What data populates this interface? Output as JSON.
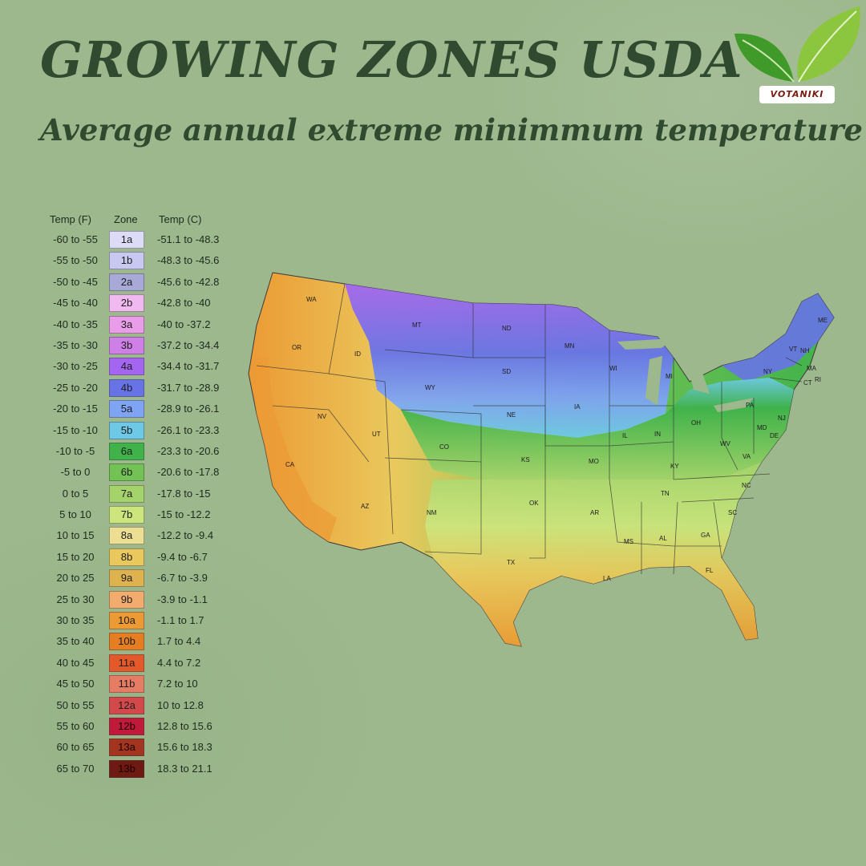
{
  "title": "GROWING ZONES USDA",
  "subtitle": "Average annual extreme minimmum temperature",
  "logo": {
    "text": "VOTANIKI",
    "icon": "leaf-icon"
  },
  "legend": {
    "headers": {
      "temp_f": "Temp (F)",
      "zone": "Zone",
      "temp_c": "Temp (C)"
    },
    "rows": [
      {
        "f": "-60 to -55",
        "zone": "1a",
        "c": "-51.1 to -48.3",
        "color": "#dcdcf6",
        "text_color": "#1d1d1d"
      },
      {
        "f": "-55 to -50",
        "zone": "1b",
        "c": "-48.3 to -45.6",
        "color": "#c8c8f0",
        "text_color": "#1d1d1d"
      },
      {
        "f": "-50 to -45",
        "zone": "2a",
        "c": "-45.6 to -42.8",
        "color": "#a9a9d8",
        "text_color": "#1d1d1d"
      },
      {
        "f": "-45 to -40",
        "zone": "2b",
        "c": "-42.8 to -40",
        "color": "#f0b9f0",
        "text_color": "#1d1d1d"
      },
      {
        "f": "-40 to -35",
        "zone": "3a",
        "c": "-40 to -37.2",
        "color": "#e99de9",
        "text_color": "#1d1d1d"
      },
      {
        "f": "-35 to -30",
        "zone": "3b",
        "c": "-37.2 to -34.4",
        "color": "#cf80e6",
        "text_color": "#1d1d1d"
      },
      {
        "f": "-30 to -25",
        "zone": "4a",
        "c": "-34.4 to -31.7",
        "color": "#a466f0",
        "text_color": "#1d1d1d"
      },
      {
        "f": "-25 to -20",
        "zone": "4b",
        "c": "-31.7 to -28.9",
        "color": "#6873e8",
        "text_color": "#1d1d1d"
      },
      {
        "f": "-20 to -15",
        "zone": "5a",
        "c": "-28.9 to -26.1",
        "color": "#7ea4f3",
        "text_color": "#1d1d1d"
      },
      {
        "f": "-15 to -10",
        "zone": "5b",
        "c": "-26.1 to -23.3",
        "color": "#6dc9e6",
        "text_color": "#1d1d1d"
      },
      {
        "f": "-10 to -5",
        "zone": "6a",
        "c": "-23.3 to -20.6",
        "color": "#3fb24a",
        "text_color": "#1d1d1d"
      },
      {
        "f": "-5 to 0",
        "zone": "6b",
        "c": "-20.6 to -17.8",
        "color": "#72c255",
        "text_color": "#1d1d1d"
      },
      {
        "f": "0 to 5",
        "zone": "7a",
        "c": "-17.8 to -15",
        "color": "#a5d36b",
        "text_color": "#1d1d1d"
      },
      {
        "f": "5 to 10",
        "zone": "7b",
        "c": "-15 to -12.2",
        "color": "#cde57d",
        "text_color": "#1d1d1d"
      },
      {
        "f": "10 to 15",
        "zone": "8a",
        "c": "-12.2 to -9.4",
        "color": "#ecde92",
        "text_color": "#1d1d1d"
      },
      {
        "f": "15 to 20",
        "zone": "8b",
        "c": "-9.4 to -6.7",
        "color": "#e9c95d",
        "text_color": "#1d1d1d"
      },
      {
        "f": "20 to 25",
        "zone": "9a",
        "c": "-6.7 to -3.9",
        "color": "#ddb24f",
        "text_color": "#1d1d1d"
      },
      {
        "f": "25 to 30",
        "zone": "9b",
        "c": "-3.9 to -1.1",
        "color": "#f2ad6e",
        "text_color": "#1d1d1d"
      },
      {
        "f": "30 to 35",
        "zone": "10a",
        "c": "-1.1 to 1.7",
        "color": "#ec9a34",
        "text_color": "#1d1d1d"
      },
      {
        "f": "35 to 40",
        "zone": "10b",
        "c": "1.7 to 4.4",
        "color": "#e57d22",
        "text_color": "#1d1d1d"
      },
      {
        "f": "40 to 45",
        "zone": "11a",
        "c": "4.4 to 7.2",
        "color": "#e3592a",
        "text_color": "#1d1d1d"
      },
      {
        "f": "45 to 50",
        "zone": "11b",
        "c": "7.2 to 10",
        "color": "#e67c63",
        "text_color": "#1d1d1d"
      },
      {
        "f": "50 to 55",
        "zone": "12a",
        "c": "10 to 12.8",
        "color": "#d2484b",
        "text_color": "#1d1d1d"
      },
      {
        "f": "55 to 60",
        "zone": "12b",
        "c": "12.8 to 15.6",
        "color": "#c01a3a",
        "text_color": "#1d1d1d"
      },
      {
        "f": "60 to 65",
        "zone": "13a",
        "c": "15.6 to 18.3",
        "color": "#a23420",
        "text_color": "#1d1d1d"
      },
      {
        "f": "65 to 70",
        "zone": "13b",
        "c": "18.3 to 21.1",
        "color": "#6e1a12",
        "text_color": "#1d1d1d"
      }
    ]
  },
  "map": {
    "state_labels": [
      "WA",
      "OR",
      "CA",
      "NV",
      "ID",
      "MT",
      "WY",
      "UT",
      "AZ",
      "CO",
      "NM",
      "ND",
      "SD",
      "NE",
      "KS",
      "OK",
      "TX",
      "MN",
      "IA",
      "MO",
      "AR",
      "LA",
      "WI",
      "IL",
      "MI",
      "IN",
      "OH",
      "KY",
      "TN",
      "MS",
      "AL",
      "GA",
      "FL",
      "SC",
      "NC",
      "VA",
      "WV",
      "PA",
      "NY",
      "VT",
      "NH",
      "ME",
      "MA",
      "CT",
      "RI",
      "NJ",
      "MD",
      "DE"
    ]
  }
}
